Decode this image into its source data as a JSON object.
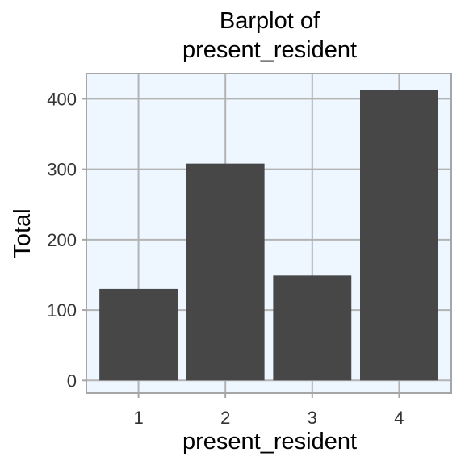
{
  "chart_data": {
    "type": "bar",
    "title": "Barplot of\npresent_resident",
    "xlabel": "present_resident",
    "ylabel": "Total",
    "categories": [
      "1",
      "2",
      "3",
      "4"
    ],
    "values": [
      130,
      308,
      149,
      413
    ],
    "ylim": [
      -18,
      436
    ],
    "yticks": [
      0,
      100,
      200,
      300,
      400
    ],
    "grid": true,
    "legend": "none",
    "colors": {
      "bar": "#474747",
      "panel_background": "#eef6ff",
      "grid": "#b3b3b3",
      "panel_border": "#a6a6a6",
      "tick_text": "#333333"
    }
  }
}
